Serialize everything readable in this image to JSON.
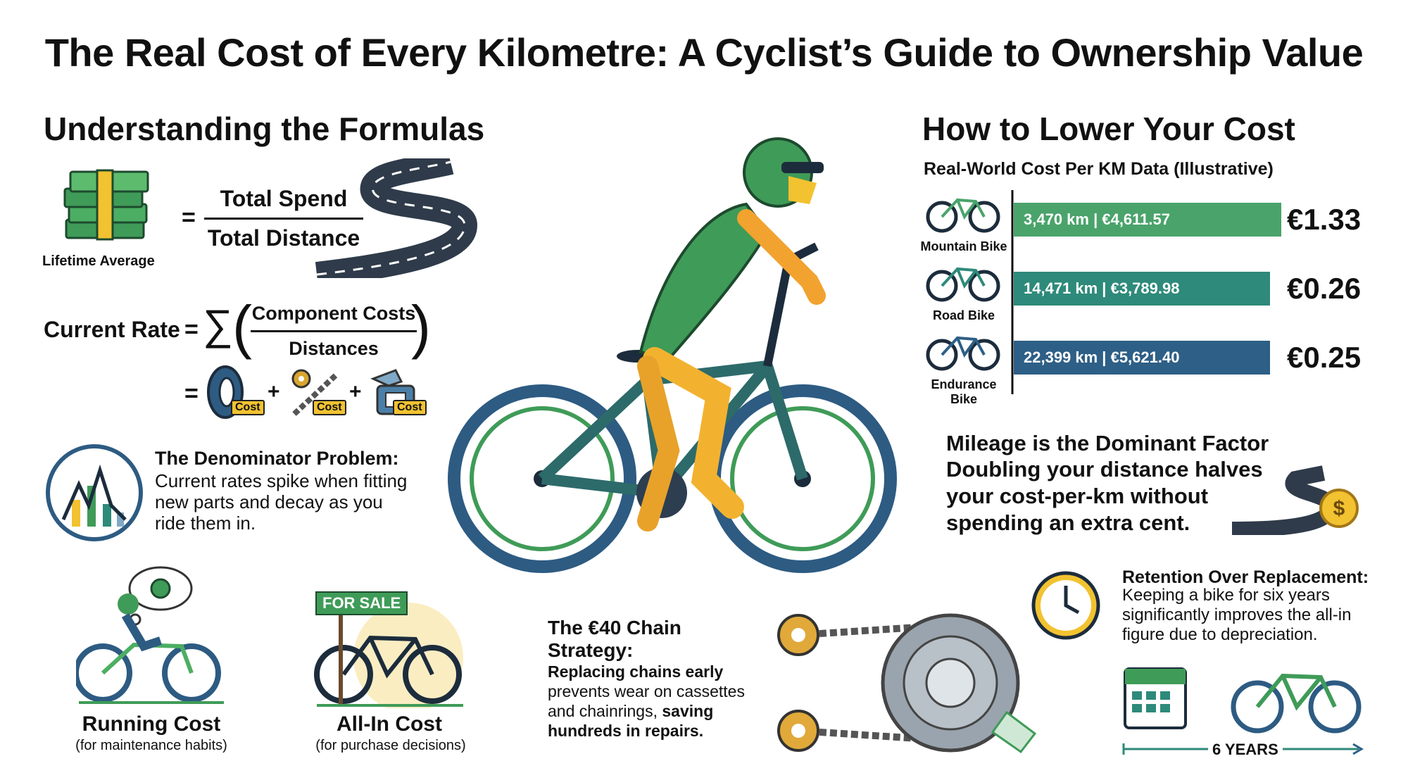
{
  "title": "The Real Cost of Every Kilometre: A Cyclist’s Guide to Ownership Value",
  "left": {
    "heading": "Understanding the Formulas",
    "lifetime_label": "Lifetime Average",
    "equals": "=",
    "numerator": "Total Spend",
    "denominator": "Total Distance",
    "current_rate_label": "Current Rate",
    "sigma": "∑",
    "comp_numerator": "Component Costs",
    "comp_denominator": "Distances",
    "plus": "+",
    "cost_tag": "Cost",
    "denominator_title": "The Denominator Problem:",
    "denominator_text": "Current rates spike when fitting new parts and decay as you ride them in.",
    "running_title": "Running Cost",
    "running_sub": "(for maintenance habits)",
    "allin_title": "All-In Cost",
    "allin_sub": "(for purchase decisions)",
    "for_sale": "FOR SALE"
  },
  "center": {
    "chain_title": "The €40 Chain Strategy:",
    "chain_bold1": "Replacing chains early",
    "chain_text1": "prevents wear on cassettes and chainrings,",
    "chain_bold2": "saving hundreds in repairs."
  },
  "right": {
    "heading": "How to Lower Your Cost",
    "chart_title": "Real-World Cost Per KM Data (Illustrative)",
    "mileage_title": "Mileage is the Dominant Factor",
    "mileage_text": "Doubling your distance halves your cost-per-km without spending an extra cent.",
    "retention_title": "Retention Over Replacement:",
    "retention_text": "Keeping a bike for six years significantly improves the all-in figure due to depreciation.",
    "years_label": "6 YEARS"
  },
  "chart_data": {
    "type": "bar",
    "title": "Real-World Cost Per KM Data (Illustrative)",
    "categories": [
      "Mountain Bike",
      "Road Bike",
      "Endurance Bike"
    ],
    "bar_labels": [
      "3,470 km | €4,611.57",
      "14,471 km | €3,789.98",
      "22,399 km | €5,621.40"
    ],
    "value_labels": [
      "€1.33",
      "€0.26",
      "€0.25"
    ],
    "values": [
      1.33,
      0.26,
      0.25
    ],
    "colors": [
      "#4aa36b",
      "#2e8a7a",
      "#2e5f86"
    ]
  }
}
